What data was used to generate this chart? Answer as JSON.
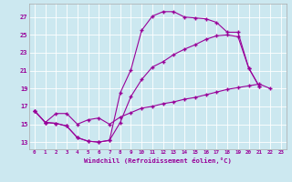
{
  "background_color": "#cce8f0",
  "line_color": "#990099",
  "xlabel": "Windchill (Refroidissement éolien,°C)",
  "xlim": [
    -0.5,
    23.5
  ],
  "ylim": [
    12.2,
    28.5
  ],
  "xticks": [
    0,
    1,
    2,
    3,
    4,
    5,
    6,
    7,
    8,
    9,
    10,
    11,
    12,
    13,
    14,
    15,
    16,
    17,
    18,
    19,
    20,
    21,
    22,
    23
  ],
  "yticks": [
    13,
    15,
    17,
    19,
    21,
    23,
    25,
    27
  ],
  "line1_y": [
    16.5,
    15.2,
    15.1,
    14.8,
    13.5,
    13.1,
    13.0,
    13.2,
    18.5,
    21.1,
    25.5,
    27.1,
    27.6,
    27.6,
    27.0,
    26.9,
    26.8,
    26.4,
    25.3,
    25.3,
    21.3,
    19.2
  ],
  "line2_y": [
    16.5,
    15.2,
    16.2,
    16.2,
    15.0,
    15.5,
    15.7,
    15.0,
    15.8,
    16.3,
    16.8,
    17.0,
    17.3,
    17.5,
    17.8,
    18.0,
    18.3,
    18.6,
    18.9,
    19.1,
    19.3,
    19.5,
    19.0
  ],
  "line3_y": [
    16.5,
    15.2,
    15.1,
    14.8,
    13.5,
    13.1,
    13.0,
    13.2,
    15.2,
    18.1,
    20.0,
    21.4,
    22.0,
    22.8,
    23.4,
    23.9,
    24.5,
    24.9,
    25.0,
    24.8,
    21.3,
    19.2
  ]
}
